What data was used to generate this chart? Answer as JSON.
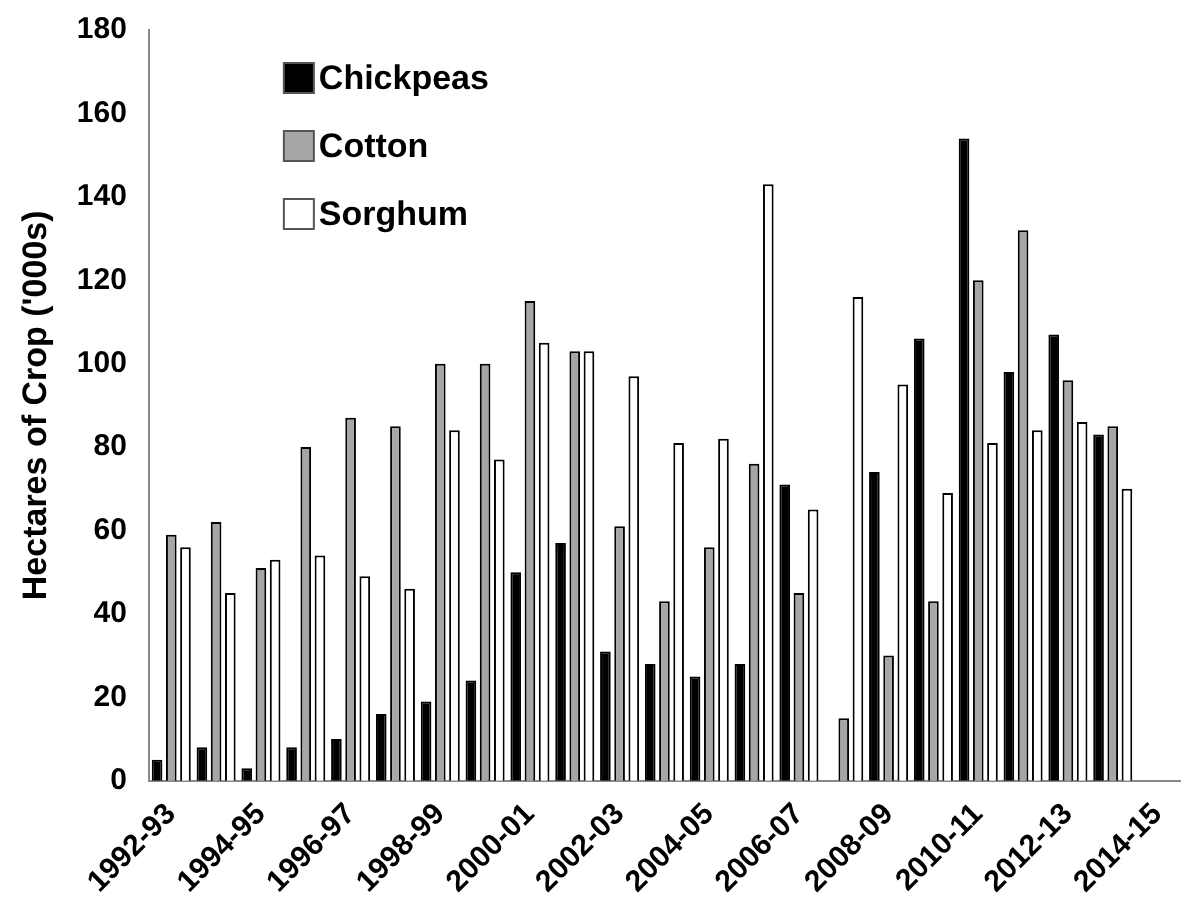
{
  "chart_data": {
    "type": "bar",
    "ylabel": "Hectares of Crop ('000s)",
    "categories": [
      "1992-93",
      null,
      "1994-95",
      null,
      "1996-97",
      null,
      "1998-99",
      null,
      "2000-01",
      null,
      "2002-03",
      null,
      "2004-05",
      null,
      "2006-07",
      null,
      "2008-09",
      null,
      "2010-11",
      null,
      "2012-13",
      null,
      "2014-15"
    ],
    "series": [
      {
        "name": "Chickpeas",
        "color": "#000000",
        "values": [
          5,
          8,
          3,
          8,
          10,
          16,
          19,
          24,
          50,
          57,
          31,
          28,
          25,
          28,
          71,
          null,
          74,
          106,
          154,
          98,
          107,
          83,
          null
        ]
      },
      {
        "name": "Cotton",
        "color": "#a6a6a6",
        "values": [
          59,
          62,
          51,
          80,
          87,
          85,
          100,
          100,
          115,
          103,
          61,
          43,
          56,
          76,
          45,
          15,
          30,
          43,
          120,
          132,
          96,
          85,
          null
        ]
      },
      {
        "name": "Sorghum",
        "color": "#ffffff",
        "values": [
          56,
          45,
          53,
          54,
          49,
          46,
          84,
          77,
          105,
          103,
          97,
          81,
          82,
          143,
          65,
          116,
          95,
          69,
          81,
          84,
          86,
          70,
          null
        ]
      }
    ],
    "ylim": [
      0,
      180
    ],
    "yticks": [
      0,
      20,
      40,
      60,
      80,
      100,
      120,
      140,
      160,
      180
    ],
    "grid": false,
    "legend": "top left"
  }
}
